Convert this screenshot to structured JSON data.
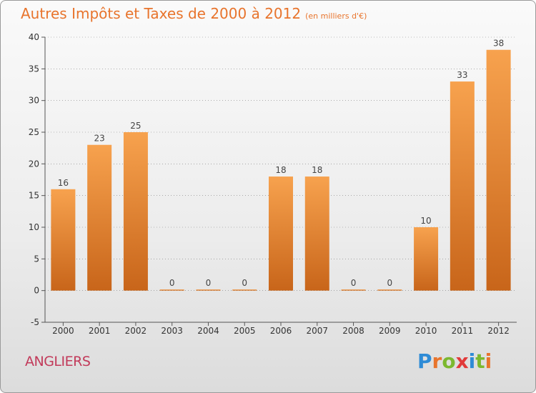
{
  "header": {
    "title": "Autres Impôts et Taxes de 2000 à 2012",
    "unit": "(en milliers d'€)"
  },
  "commune": "ANGLIERS",
  "logo": {
    "text": "Proxiti",
    "letters": [
      "P",
      "r",
      "o",
      "x",
      "i",
      "t",
      "i"
    ],
    "colors": [
      "#2e8bd6",
      "#e8742c",
      "#7cb82f",
      "#e13a3a",
      "#2e8bd6",
      "#7cb82f",
      "#e8742c"
    ]
  },
  "colors": {
    "bar_top": "#f7a24e",
    "bar_bottom": "#c8651a",
    "axis": "#555555",
    "grid": "#333333"
  },
  "chart_data": {
    "type": "bar",
    "categories": [
      "2000",
      "2001",
      "2002",
      "2003",
      "2004",
      "2005",
      "2006",
      "2007",
      "2008",
      "2009",
      "2010",
      "2011",
      "2012"
    ],
    "values": [
      16,
      23,
      25,
      0,
      0,
      0,
      18,
      18,
      0,
      0,
      10,
      33,
      38
    ],
    "data_labels": [
      "16",
      "23",
      "25",
      "0",
      "0",
      "0",
      "18",
      "18",
      "0",
      "0",
      "10",
      "33",
      "38"
    ],
    "yticks": [
      -5,
      0,
      5,
      10,
      15,
      20,
      25,
      30,
      35,
      40
    ],
    "ylim": [
      -5,
      40
    ],
    "title": "Autres Impôts et Taxes de 2000 à 2012",
    "ylabel": "",
    "xlabel": ""
  }
}
